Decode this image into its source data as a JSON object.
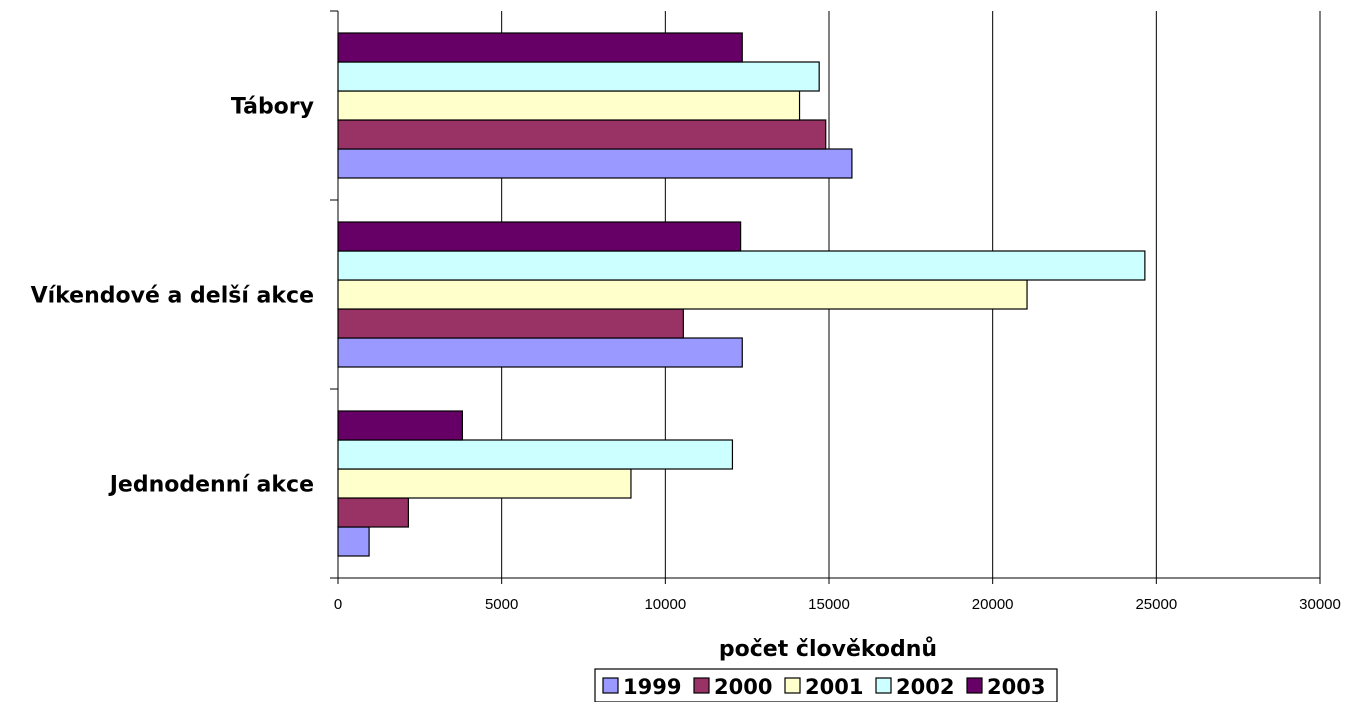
{
  "chart_data": {
    "type": "bar",
    "orientation": "horizontal",
    "categories": [
      "Jednodenní akce",
      "Víkendové a delší akce",
      "Tábory"
    ],
    "series": [
      {
        "name": "1999",
        "color": "#9999ff",
        "values": [
          950,
          12350,
          15700
        ]
      },
      {
        "name": "2000",
        "color": "#993366",
        "values": [
          2150,
          10550,
          14900
        ]
      },
      {
        "name": "2001",
        "color": "#ffffcc",
        "values": [
          8950,
          21050,
          14100
        ]
      },
      {
        "name": "2002",
        "color": "#ccffff",
        "values": [
          12050,
          24650,
          14700
        ]
      },
      {
        "name": "2003",
        "color": "#660066",
        "values": [
          3800,
          12300,
          12350
        ]
      }
    ],
    "xlabel": "počet člověkodnů",
    "ylabel": "",
    "xlim": [
      0,
      30000
    ],
    "xticks": [
      0,
      5000,
      10000,
      15000,
      20000,
      25000,
      30000
    ],
    "grid": "vertical",
    "legend": "bottom"
  }
}
